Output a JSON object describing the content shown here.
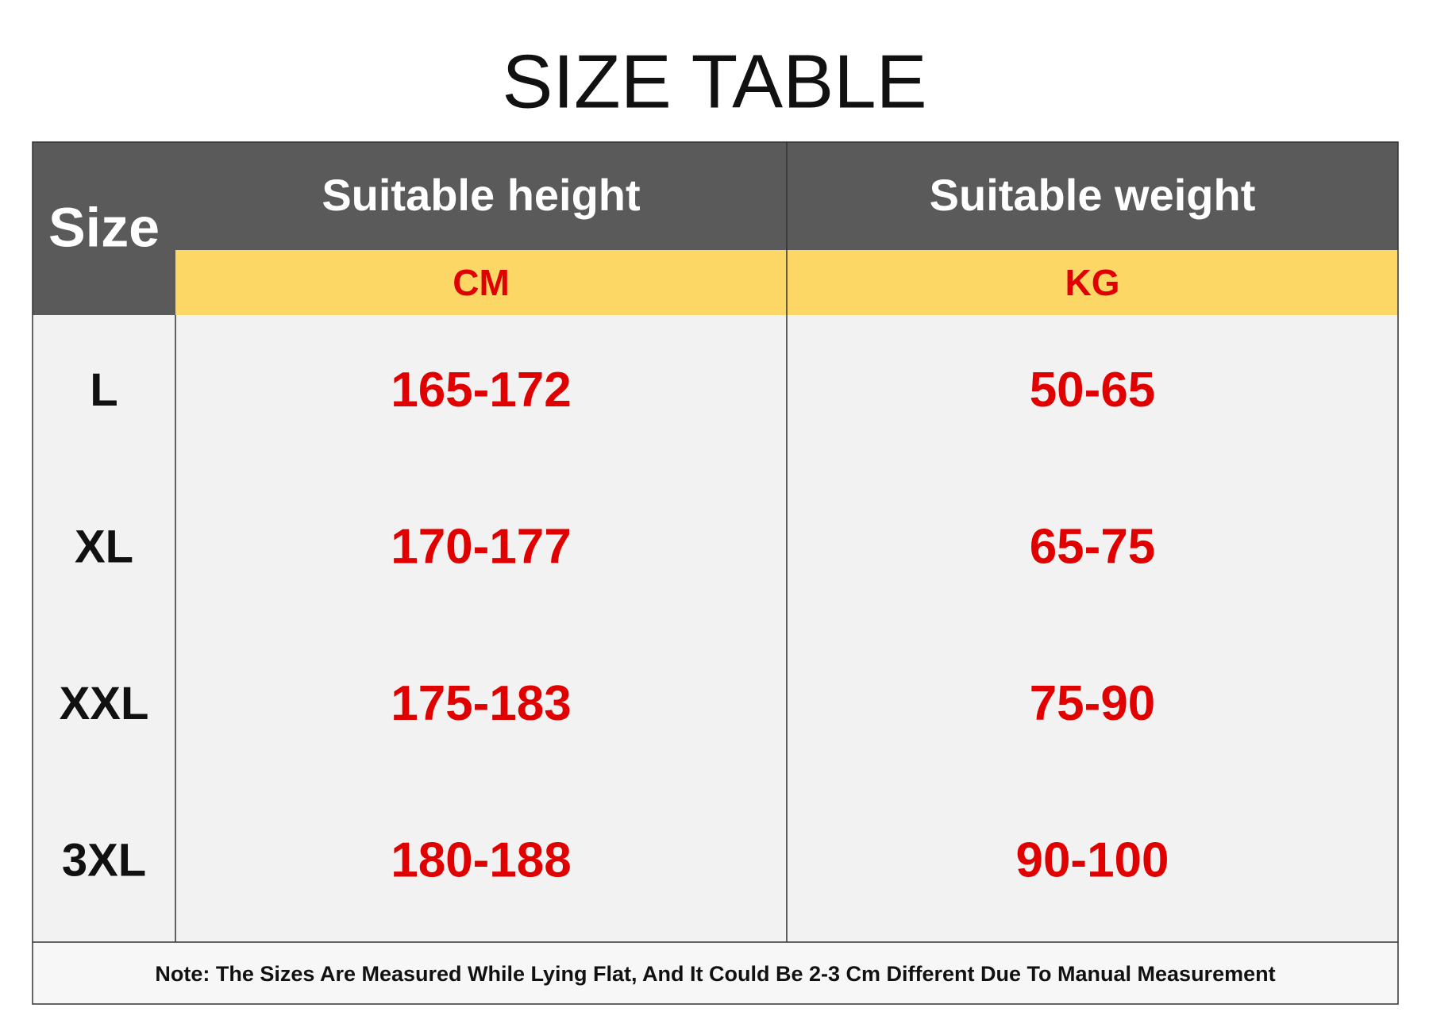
{
  "header": {
    "title": "SIZE TABLE"
  },
  "table": {
    "columns": [
      "Size",
      "Suitable height",
      "Suitable weight"
    ],
    "units": [
      "CM",
      "KG"
    ],
    "rows": [
      [
        "L",
        "165-172",
        "50-65"
      ],
      [
        "XL",
        "170-177",
        "65-75"
      ],
      [
        "XXL",
        "175-183",
        "75-90"
      ],
      [
        "3XL",
        "180-188",
        "90-100"
      ]
    ],
    "note": "Note: The Sizes Are Measured While Lying Flat, And It Could Be 2-3 Cm Different Due To Manual Measurement"
  }
}
